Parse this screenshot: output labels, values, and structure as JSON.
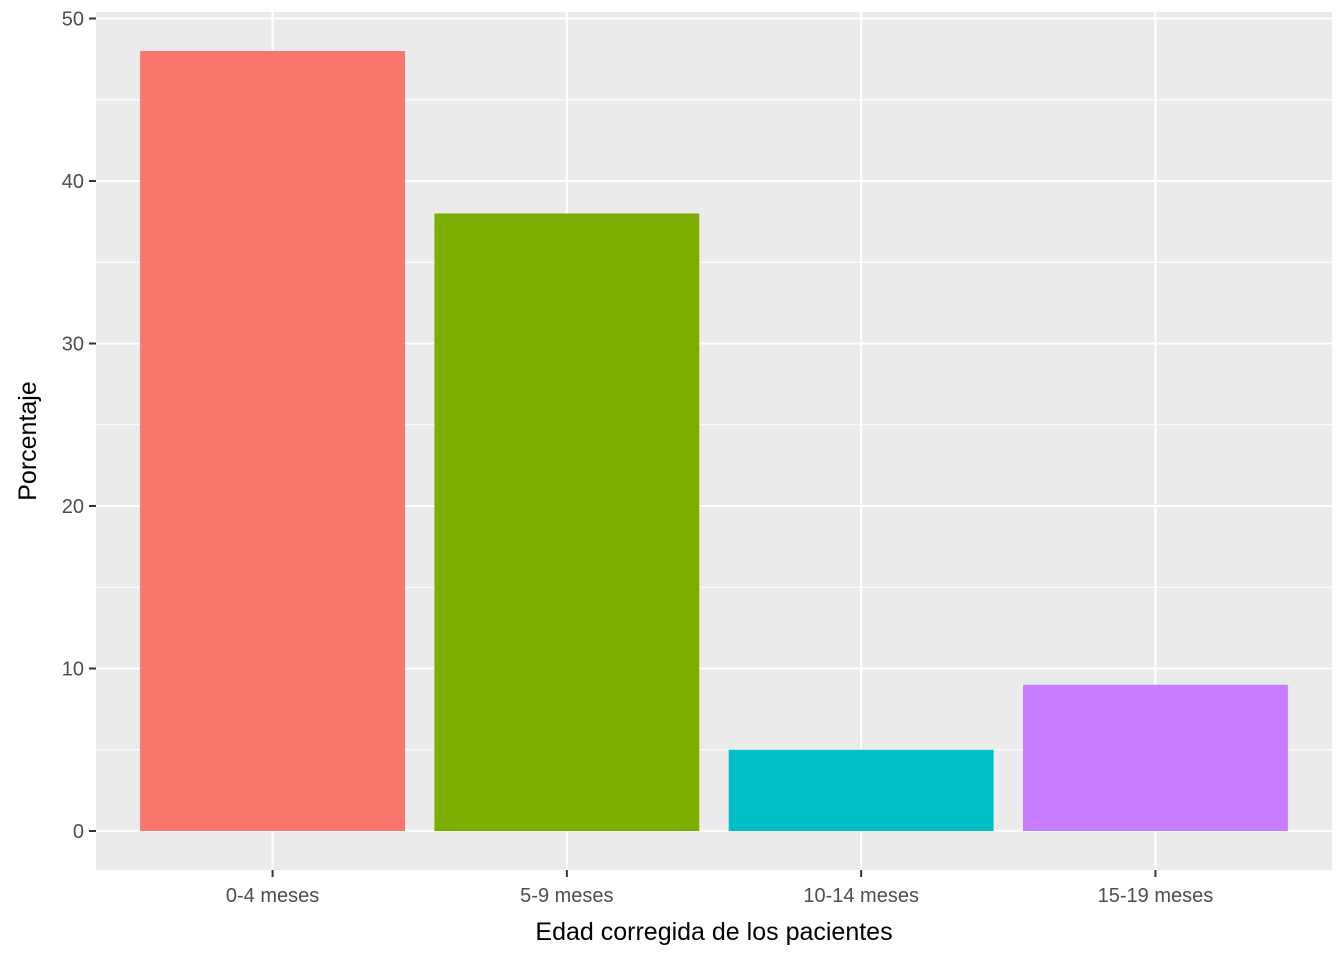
{
  "chart_data": {
    "type": "bar",
    "categories": [
      "0-4 meses",
      "5-9 meses",
      "10-14 meses",
      "15-19 meses"
    ],
    "values": [
      48,
      38,
      5,
      9
    ],
    "colors": [
      "#F8766D",
      "#7CAE00",
      "#00BFC4",
      "#C77CFF"
    ],
    "xlabel": "Edad corregida de los pacientes",
    "ylabel": "Porcentaje",
    "ylim": [
      -2.4,
      50.4
    ],
    "yticks": [
      0,
      10,
      20,
      30,
      40,
      50
    ],
    "grid": true,
    "background": "#EBEBEB",
    "grid_color": "#FFFFFF",
    "legend": "none"
  }
}
